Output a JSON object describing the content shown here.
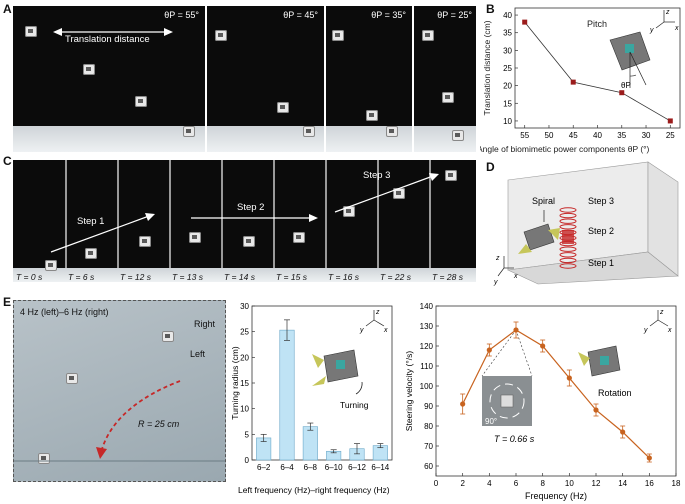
{
  "panels": {
    "A": "A",
    "B": "B",
    "C": "C",
    "D": "D",
    "E": "E"
  },
  "panelA": {
    "annotation": "Translation distance",
    "angles": [
      "θP = 55°",
      "θP = 45°",
      "θP = 35°",
      "θP = 25°"
    ]
  },
  "panelB": {
    "chart_data": {
      "type": "line",
      "x": [
        55,
        45,
        35,
        25
      ],
      "values": [
        38,
        21,
        18,
        10
      ],
      "xlabel": "Angle of biomimetic power components θP (°)",
      "ylabel": "Translation distance (cm)",
      "xlim": [
        57,
        23
      ],
      "ylim": [
        8,
        42
      ],
      "xticks": [
        "55",
        "50",
        "45",
        "40",
        "35",
        "30",
        "25"
      ],
      "yticks": [
        "10",
        "15",
        "20",
        "25",
        "30",
        "35",
        "40"
      ],
      "annotation": "Pitch",
      "inset_theta": "θP",
      "axes": [
        "z",
        "y",
        "x"
      ]
    }
  },
  "panelC": {
    "steps": [
      "Step 1",
      "Step 2",
      "Step 3"
    ],
    "times": [
      "T = 0 s",
      "T = 6 s",
      "T = 12 s",
      "T = 13 s",
      "T = 14 s",
      "T = 15 s",
      "T = 16 s",
      "T = 22 s",
      "T = 28 s"
    ]
  },
  "panelD": {
    "label": "Spiral",
    "steps": [
      "Step 3",
      "Step 2",
      "Step 1"
    ],
    "axes": [
      "z",
      "y",
      "x"
    ]
  },
  "panelE_photo": {
    "title": "4 Hz (left)–6 Hz (right)",
    "right": "Right",
    "left": "Left",
    "radius": "R = 25 cm"
  },
  "panelE_bar": {
    "chart_data": {
      "type": "bar",
      "categories": [
        "6–2",
        "6–4",
        "6–8",
        "6–10",
        "6–12",
        "6–14"
      ],
      "values": [
        4.3,
        25.3,
        6.5,
        1.7,
        2.2,
        2.8
      ],
      "errors": [
        0.7,
        2.0,
        0.7,
        0.3,
        1.0,
        0.4
      ],
      "xlabel": "Left frequency (Hz)–right frequency (Hz)",
      "ylabel": "Turning radius (cm)",
      "ylim": [
        0,
        30
      ],
      "yticks": [
        "0",
        "5",
        "10",
        "15",
        "20",
        "25",
        "30"
      ],
      "annotation": "Turning",
      "axes": [
        "z",
        "y",
        "x"
      ]
    }
  },
  "panelE_line": {
    "chart_data": {
      "type": "line",
      "x": [
        2,
        4,
        6,
        8,
        10,
        12,
        14,
        16
      ],
      "values": [
        91,
        118,
        128,
        120,
        104,
        88,
        77,
        64
      ],
      "errors": [
        5,
        3,
        4,
        3,
        4,
        3,
        3,
        2
      ],
      "xlabel": "Frequency (Hz)",
      "ylabel": "Steering velocity (°/s)",
      "xlim": [
        0,
        18
      ],
      "ylim": [
        55,
        140
      ],
      "xticks": [
        "0",
        "2",
        "4",
        "6",
        "8",
        "10",
        "12",
        "14",
        "16",
        "18"
      ],
      "yticks": [
        "60",
        "70",
        "80",
        "90",
        "100",
        "110",
        "120",
        "130",
        "140"
      ],
      "annotation": "Rotation",
      "inset_angle": "90°",
      "period": "T = 0.66 s",
      "axes": [
        "z",
        "y",
        "x"
      ],
      "color": "#c8631f"
    }
  }
}
